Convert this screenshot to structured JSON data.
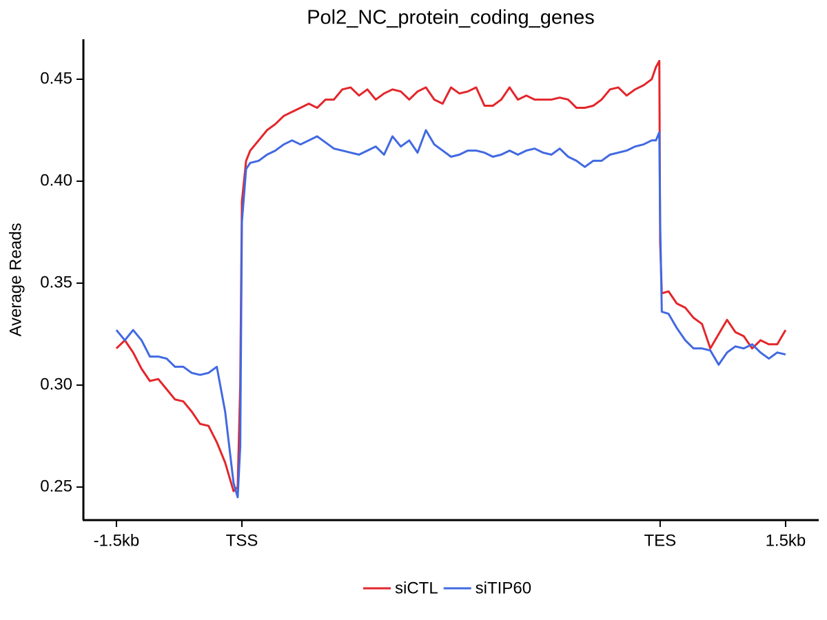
{
  "chart_data": {
    "type": "line",
    "title": "Pol2_NC_protein_coding_genes",
    "y_label": "Average Reads",
    "x": [
      0,
      10,
      20,
      30,
      40,
      50,
      60,
      70,
      80,
      90,
      100,
      110,
      120,
      130,
      140,
      145,
      148,
      150,
      155,
      160,
      170,
      180,
      190,
      200,
      210,
      220,
      230,
      240,
      250,
      260,
      270,
      280,
      290,
      300,
      310,
      320,
      330,
      340,
      350,
      360,
      370,
      380,
      390,
      400,
      410,
      420,
      430,
      440,
      450,
      460,
      470,
      480,
      490,
      500,
      510,
      520,
      530,
      540,
      550,
      560,
      570,
      580,
      590,
      600,
      610,
      620,
      630,
      640,
      645,
      649,
      650,
      652,
      660,
      670,
      680,
      690,
      700,
      710,
      720,
      730,
      740,
      750,
      760,
      770,
      780,
      790,
      800
    ],
    "series": [
      {
        "name": "siCTL",
        "color": "#e3262b",
        "values": [
          0.318,
          0.322,
          0.316,
          0.308,
          0.302,
          0.303,
          0.298,
          0.293,
          0.292,
          0.287,
          0.281,
          0.28,
          0.272,
          0.262,
          0.248,
          0.25,
          0.3,
          0.39,
          0.41,
          0.415,
          0.42,
          0.425,
          0.428,
          0.432,
          0.434,
          0.436,
          0.438,
          0.436,
          0.44,
          0.44,
          0.445,
          0.446,
          0.442,
          0.445,
          0.44,
          0.443,
          0.445,
          0.444,
          0.44,
          0.444,
          0.446,
          0.44,
          0.438,
          0.446,
          0.443,
          0.444,
          0.446,
          0.437,
          0.437,
          0.44,
          0.446,
          0.44,
          0.442,
          0.44,
          0.44,
          0.44,
          0.441,
          0.44,
          0.436,
          0.436,
          0.437,
          0.44,
          0.445,
          0.446,
          0.442,
          0.445,
          0.447,
          0.45,
          0.456,
          0.459,
          0.37,
          0.345,
          0.346,
          0.34,
          0.338,
          0.333,
          0.33,
          0.318,
          0.325,
          0.332,
          0.326,
          0.324,
          0.318,
          0.322,
          0.32,
          0.32,
          0.327
        ]
      },
      {
        "name": "siTIP60",
        "color": "#4169e1",
        "values": [
          0.327,
          0.322,
          0.327,
          0.322,
          0.314,
          0.314,
          0.313,
          0.309,
          0.309,
          0.306,
          0.305,
          0.306,
          0.309,
          0.287,
          0.252,
          0.245,
          0.27,
          0.38,
          0.406,
          0.409,
          0.41,
          0.413,
          0.415,
          0.418,
          0.42,
          0.418,
          0.42,
          0.422,
          0.419,
          0.416,
          0.415,
          0.414,
          0.413,
          0.415,
          0.417,
          0.413,
          0.422,
          0.417,
          0.42,
          0.414,
          0.425,
          0.418,
          0.415,
          0.412,
          0.413,
          0.415,
          0.415,
          0.414,
          0.412,
          0.413,
          0.415,
          0.413,
          0.415,
          0.416,
          0.414,
          0.413,
          0.416,
          0.412,
          0.41,
          0.407,
          0.41,
          0.41,
          0.413,
          0.414,
          0.415,
          0.417,
          0.418,
          0.42,
          0.42,
          0.424,
          0.38,
          0.336,
          0.335,
          0.328,
          0.322,
          0.318,
          0.318,
          0.317,
          0.31,
          0.316,
          0.319,
          0.318,
          0.32,
          0.316,
          0.313,
          0.316,
          0.315
        ]
      }
    ],
    "xlim": [
      -39.5,
      839.6
    ],
    "xticks": [
      {
        "value": 0,
        "label": "-1.5kb"
      },
      {
        "value": 150,
        "label": "TSS"
      },
      {
        "value": 650,
        "label": "TES"
      },
      {
        "value": 800,
        "label": "1.5kb"
      }
    ],
    "ylim": [
      0.2338,
      0.4696
    ],
    "yticks": [
      0.25,
      {
        "value": 0.3,
        "label": "0.30"
      },
      0.35,
      {
        "value": 0.4,
        "label": "0.40"
      },
      0.45
    ],
    "grid": false,
    "legend": "bottom"
  }
}
